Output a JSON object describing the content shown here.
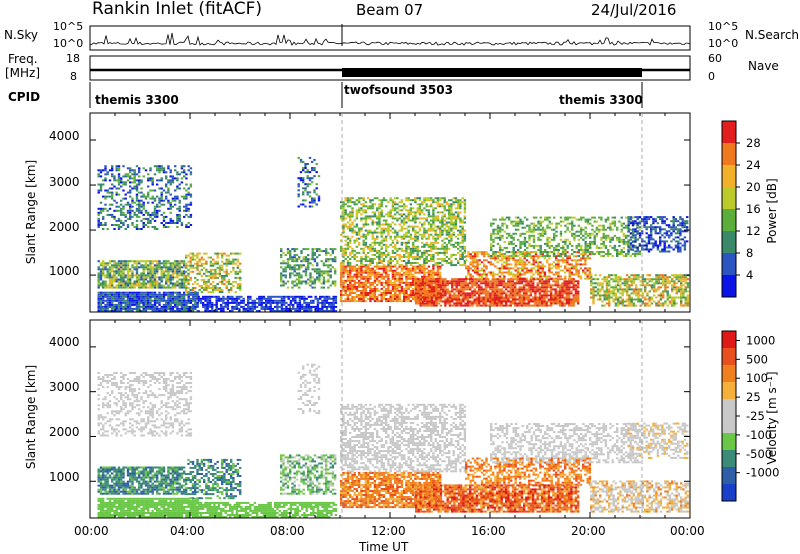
{
  "header": {
    "station": "Rankin Inlet (fitACF)",
    "beam": "Beam 07",
    "date": "24/Jul/2016"
  },
  "noise_panel": {
    "left_label": "N.Sky",
    "right_label": "N.Search",
    "left_ticks": [
      "10^5",
      "10^0"
    ],
    "right_ticks": [
      "10^5",
      "10^0"
    ]
  },
  "freq_panel": {
    "left_label_1": "Freq.",
    "left_label_2": "[MHz]",
    "right_label": "Nave",
    "left_ticks": [
      "18",
      "8"
    ],
    "right_ticks": [
      "60",
      "0"
    ]
  },
  "cpid_panel": {
    "label": "CPID",
    "segments": [
      {
        "name": "themis 3300",
        "start": 0,
        "end": 10
      },
      {
        "name": "twofsound 3503",
        "start": 10,
        "end": 22
      },
      {
        "name": "themis 3300",
        "start": 22,
        "end": 24
      }
    ]
  },
  "colors": {
    "power_scale": [
      "#0a14e6",
      "#2d55c2",
      "#3a8a6a",
      "#5cae3c",
      "#bccb2a",
      "#f2b12a",
      "#f0781e",
      "#e21e1e"
    ],
    "velocity_scale": [
      "#1a3fc8",
      "#2f5ea8",
      "#3c8a78",
      "#6ac646",
      "#c8c8c8",
      "#c8c8c8",
      "#f5b03a",
      "#f07f1e",
      "#e8501e",
      "#e01818"
    ]
  },
  "chart_data": [
    {
      "type": "heatmap",
      "name": "power",
      "ylabel": "Slant Range [km]",
      "yticks": [
        1000,
        2000,
        3000,
        4000
      ],
      "ylim": [
        180,
        4600
      ],
      "colorbar_label": "Power [dB]",
      "colorbar_ticks": [
        "28",
        "24",
        "20",
        "16",
        "12",
        "8",
        "4"
      ],
      "colorbar_range": [
        0,
        32
      ]
    },
    {
      "type": "heatmap",
      "name": "velocity",
      "ylabel": "Slant Range [km]",
      "yticks": [
        1000,
        2000,
        3000,
        4000
      ],
      "ylim": [
        180,
        4600
      ],
      "xlabel": "Time UT",
      "xticks": [
        "00:00",
        "04:00",
        "08:00",
        "12:00",
        "16:00",
        "20:00",
        "00:00"
      ],
      "xlim_hours": [
        0,
        24
      ],
      "colorbar_label": "Velocity [m s⁻¹]",
      "colorbar_ticks": [
        "1000",
        "500",
        "100",
        "25",
        "-25",
        "-100",
        "-500",
        "-1000"
      ]
    }
  ]
}
